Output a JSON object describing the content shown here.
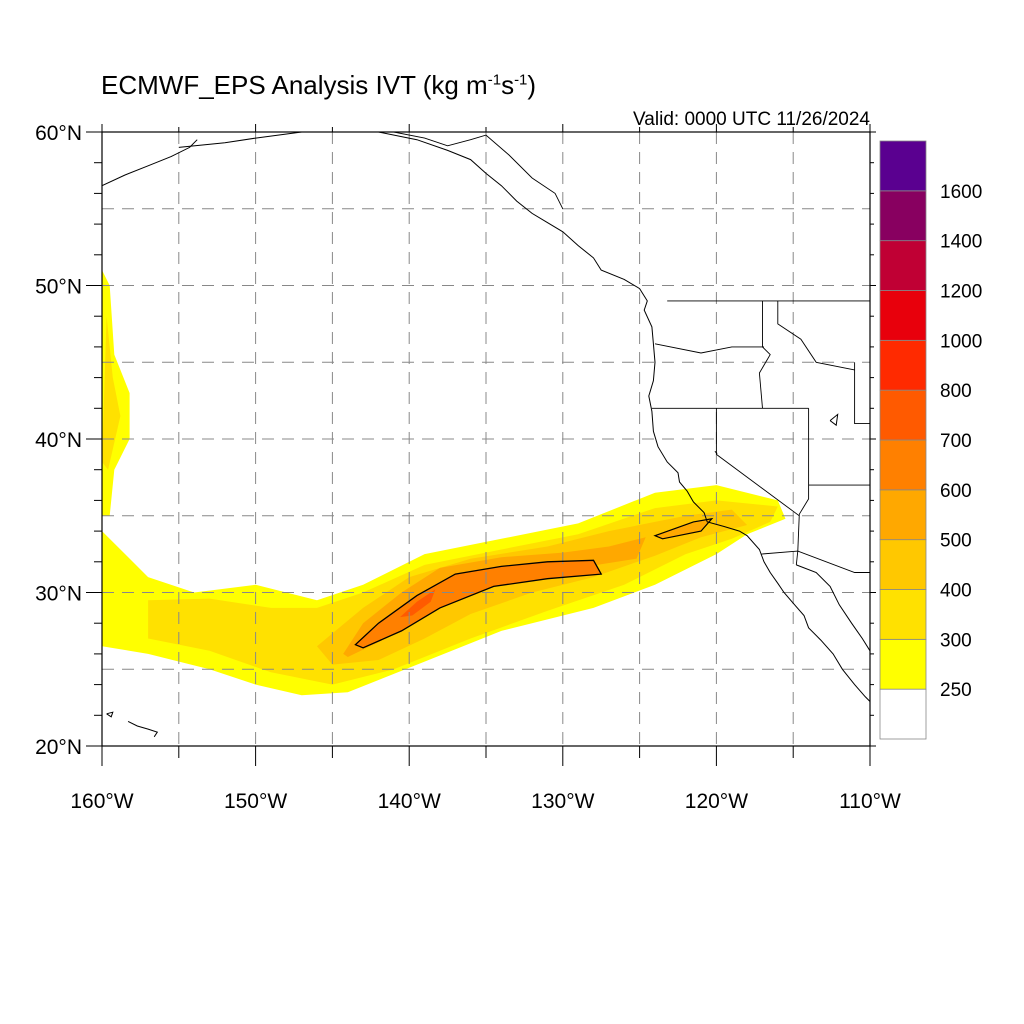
{
  "title": {
    "main": "ECMWF_EPS Analysis IVT (kg m",
    "exp1": "-1",
    "mid": "s",
    "exp2": "-1",
    "end": ")"
  },
  "valid_time": "Valid: 0000 UTC 11/26/2024",
  "map": {
    "lon_range": [
      -160,
      -110
    ],
    "lat_range": [
      20,
      60
    ],
    "lon_labels": [
      {
        "lon": -160,
        "text": "160°W"
      },
      {
        "lon": -150,
        "text": "150°W"
      },
      {
        "lon": -140,
        "text": "140°W"
      },
      {
        "lon": -130,
        "text": "130°W"
      },
      {
        "lon": -120,
        "text": "120°W"
      },
      {
        "lon": -110,
        "text": "110°W"
      }
    ],
    "lat_labels": [
      {
        "lat": 20,
        "text": "20°N"
      },
      {
        "lat": 30,
        "text": "30°N"
      },
      {
        "lat": 40,
        "text": "40°N"
      },
      {
        "lat": 50,
        "text": "50°N"
      },
      {
        "lat": 60,
        "text": "60°N"
      }
    ],
    "gridlines": "dashed every 5 degrees",
    "contour_outline_level": 600
  },
  "colorbar": {
    "levels": [
      "250",
      "300",
      "400",
      "500",
      "600",
      "700",
      "800",
      "1000",
      "1200",
      "1400",
      "1600"
    ],
    "colors": [
      "#ffffff",
      "#ffff00",
      "#ffe100",
      "#ffc800",
      "#ffa800",
      "#ff8000",
      "#ff5a00",
      "#ff2a00",
      "#e8000c",
      "#c00034",
      "#880060",
      "#5a0090"
    ]
  },
  "ivt_field": [
    {
      "name": "north-pacific-core",
      "level": 250,
      "color": "#ffff00",
      "lonlat": [
        [
          -160,
          34
        ],
        [
          -157,
          31
        ],
        [
          -154,
          30
        ],
        [
          -150,
          30.5
        ],
        [
          -146,
          29.5
        ],
        [
          -143,
          30.5
        ],
        [
          -139,
          32.5
        ],
        [
          -134,
          33.5
        ],
        [
          -129,
          34.5
        ],
        [
          -124,
          36.5
        ],
        [
          -120,
          37
        ],
        [
          -116,
          36
        ],
        [
          -115.5,
          34.8
        ],
        [
          -118,
          33.8
        ],
        [
          -120,
          32.5
        ],
        [
          -124,
          30.5
        ],
        [
          -128,
          29
        ],
        [
          -134,
          27.5
        ],
        [
          -139,
          25.5
        ],
        [
          -144,
          23.5
        ],
        [
          -147,
          23.3
        ],
        [
          -150,
          24
        ],
        [
          -153,
          25
        ],
        [
          -157,
          26
        ],
        [
          -160,
          26.5
        ]
      ]
    },
    {
      "name": "west-edge-band",
      "level": 250,
      "color": "#ffff00",
      "lonlat": [
        [
          -160,
          51
        ],
        [
          -159.5,
          50
        ],
        [
          -159.2,
          45.5
        ],
        [
          -158.2,
          43
        ],
        [
          -158.2,
          40
        ],
        [
          -159.2,
          38
        ],
        [
          -159.5,
          35
        ],
        [
          -160,
          35
        ]
      ]
    },
    {
      "name": "mid-band",
      "level": 300,
      "color": "#ffe100",
      "lonlat": [
        [
          -157,
          29.5
        ],
        [
          -153,
          29.6
        ],
        [
          -149,
          29
        ],
        [
          -146,
          29
        ],
        [
          -143,
          30
        ],
        [
          -139,
          31.8
        ],
        [
          -134,
          32.8
        ],
        [
          -129,
          33.8
        ],
        [
          -124,
          35.5
        ],
        [
          -120,
          36
        ],
        [
          -116,
          35.6
        ],
        [
          -116.5,
          34.6
        ],
        [
          -119,
          33.5
        ],
        [
          -122,
          32.5
        ],
        [
          -126,
          30.5
        ],
        [
          -131,
          28.8
        ],
        [
          -136,
          27
        ],
        [
          -141,
          25
        ],
        [
          -145,
          24
        ],
        [
          -149,
          24.8
        ],
        [
          -153,
          26.2
        ],
        [
          -157,
          27
        ]
      ]
    },
    {
      "name": "west-band-inner",
      "level": 300,
      "color": "#ffe100",
      "lonlat": [
        [
          -159.7,
          48
        ],
        [
          -159.3,
          44
        ],
        [
          -158.8,
          41.5
        ],
        [
          -159.6,
          38
        ],
        [
          -160,
          38.5
        ]
      ]
    },
    {
      "name": "inner-band",
      "level": 400,
      "color": "#ffc800",
      "lonlat": [
        [
          -146,
          26.5
        ],
        [
          -143,
          29
        ],
        [
          -140,
          31
        ],
        [
          -136,
          32.2
        ],
        [
          -131,
          33
        ],
        [
          -127,
          34
        ],
        [
          -122,
          35
        ],
        [
          -119,
          35.4
        ],
        [
          -118,
          34.4
        ],
        [
          -121,
          33.6
        ],
        [
          -124,
          32.4
        ],
        [
          -128,
          31
        ],
        [
          -132,
          30
        ],
        [
          -136,
          28.6
        ],
        [
          -139,
          27
        ],
        [
          -142,
          25.6
        ],
        [
          -145,
          25.3
        ]
      ]
    },
    {
      "name": "core-outer",
      "level": 500,
      "color": "#ffa800",
      "lonlat": [
        [
          -144.3,
          26
        ],
        [
          -143,
          28
        ],
        [
          -140.5,
          30
        ],
        [
          -138,
          31.6
        ],
        [
          -134,
          32.3
        ],
        [
          -130,
          32.6
        ],
        [
          -127,
          33
        ],
        [
          -124.6,
          33.6
        ],
        [
          -125.2,
          32.2
        ],
        [
          -129,
          31.6
        ],
        [
          -133,
          31
        ],
        [
          -136.5,
          30
        ],
        [
          -139,
          28.5
        ],
        [
          -141.5,
          27
        ],
        [
          -144,
          25.8
        ]
      ]
    },
    {
      "name": "core-inner",
      "level": 600,
      "color": "#ff8000",
      "lonlat": [
        [
          -143.5,
          26.6
        ],
        [
          -142,
          28
        ],
        [
          -139.5,
          29.8
        ],
        [
          -137,
          31.2
        ],
        [
          -134,
          31.7
        ],
        [
          -131,
          32
        ],
        [
          -128,
          32.1
        ],
        [
          -127.5,
          31.2
        ],
        [
          -131,
          30.9
        ],
        [
          -134.5,
          30.4
        ],
        [
          -138,
          29
        ],
        [
          -140.5,
          27.5
        ],
        [
          -143,
          26.4
        ]
      ]
    },
    {
      "name": "core-peak",
      "level": 700,
      "color": "#ff5a00",
      "lonlat": [
        [
          -140.6,
          28.4
        ],
        [
          -139.5,
          29.4
        ],
        [
          -138.3,
          30.2
        ],
        [
          -138.6,
          29.4
        ],
        [
          -139.8,
          28.5
        ]
      ]
    },
    {
      "name": "near-coast-patch",
      "level": 500,
      "color": "#ffa800",
      "lonlat": [
        [
          -124,
          33.7
        ],
        [
          -121.5,
          34.6
        ],
        [
          -120.3,
          34.8
        ],
        [
          -121,
          34
        ],
        [
          -123.5,
          33.5
        ]
      ]
    }
  ],
  "coastlines": [
    {
      "name": "west-coast-na",
      "lonlat": [
        [
          -155,
          59
        ],
        [
          -152,
          59.3
        ],
        [
          -150,
          59.6
        ],
        [
          -147,
          60
        ],
        [
          -145,
          60
        ],
        [
          -142,
          60
        ],
        [
          -139.5,
          59.5
        ],
        [
          -137.5,
          58.8
        ],
        [
          -136,
          58.2
        ],
        [
          -135,
          57.3
        ],
        [
          -134,
          56.5
        ],
        [
          -133,
          55.5
        ],
        [
          -132,
          54.7
        ],
        [
          -131,
          54.1
        ],
        [
          -130,
          53.5
        ],
        [
          -129,
          52.6
        ],
        [
          -128,
          51.8
        ],
        [
          -127.5,
          51
        ],
        [
          -126,
          50.4
        ],
        [
          -125,
          49.8
        ],
        [
          -124.5,
          49
        ],
        [
          -124.7,
          48.4
        ],
        [
          -124.2,
          47.3
        ],
        [
          -124.1,
          46.2
        ],
        [
          -124,
          45
        ],
        [
          -124.1,
          43.8
        ],
        [
          -124.4,
          42.8
        ],
        [
          -124.2,
          41.8
        ],
        [
          -124.1,
          40.5
        ],
        [
          -123.8,
          39.5
        ],
        [
          -123.2,
          38.5
        ],
        [
          -122.5,
          37.8
        ],
        [
          -122.4,
          37.2
        ],
        [
          -121.9,
          36.6
        ],
        [
          -121.5,
          35.9
        ],
        [
          -120.8,
          35.2
        ],
        [
          -120.6,
          34.6
        ],
        [
          -119.5,
          34.3
        ],
        [
          -118.5,
          34
        ],
        [
          -118,
          33.7
        ],
        [
          -117.2,
          32.8
        ],
        [
          -116.9,
          32
        ],
        [
          -116.5,
          31.3
        ],
        [
          -116,
          30.6
        ],
        [
          -115.6,
          30
        ],
        [
          -115,
          29.3
        ],
        [
          -114.3,
          28.5
        ],
        [
          -114,
          27.7
        ],
        [
          -113.2,
          26.9
        ],
        [
          -112.4,
          26
        ],
        [
          -111.8,
          25
        ],
        [
          -111,
          24
        ],
        [
          -110.3,
          23.2
        ],
        [
          -110,
          22.9
        ]
      ]
    },
    {
      "name": "gulf-of-california-east",
      "lonlat": [
        [
          -114.8,
          31.8
        ],
        [
          -113.5,
          31.3
        ],
        [
          -112.6,
          30.4
        ],
        [
          -112,
          29.2
        ],
        [
          -111.2,
          28
        ],
        [
          -110.5,
          27
        ],
        [
          -110,
          26.2
        ]
      ]
    },
    {
      "name": "hawaii-big-island",
      "lonlat": [
        [
          -156,
          20
        ],
        [
          -155.7,
          19.9
        ]
      ]
    },
    {
      "name": "alaska-kenai",
      "lonlat": [
        [
          -160,
          56.5
        ],
        [
          -158.5,
          57.2
        ],
        [
          -157,
          57.8
        ],
        [
          -155.5,
          58.4
        ],
        [
          -154.3,
          59
        ],
        [
          -153.8,
          59.5
        ]
      ]
    },
    {
      "name": "hawaii-chain",
      "lonlat": [
        [
          -159.7,
          22.1
        ],
        [
          -159.3,
          22.2
        ],
        [
          -159.4,
          21.9
        ],
        [
          -159.7,
          22.1
        ]
      ]
    },
    {
      "name": "maui-oahu",
      "lonlat": [
        [
          -158.3,
          21.6
        ],
        [
          -157.7,
          21.3
        ],
        [
          -157,
          21.1
        ],
        [
          -156.4,
          20.9
        ],
        [
          -156.6,
          20.6
        ]
      ]
    }
  ],
  "borders": [
    {
      "name": "canada-us-west",
      "lonlat": [
        [
          -123.2,
          49
        ],
        [
          -110,
          49
        ]
      ]
    },
    {
      "name": "alaska-canada",
      "lonlat": [
        [
          -141,
          60
        ],
        [
          -139,
          59.6
        ],
        [
          -137.5,
          59.1
        ],
        [
          -136,
          59.5
        ],
        [
          -135,
          59.8
        ],
        [
          -133.5,
          58.5
        ],
        [
          -132,
          57
        ],
        [
          -130.5,
          56
        ],
        [
          -130,
          55
        ]
      ]
    },
    {
      "name": "wa-or",
      "lonlat": [
        [
          -124,
          46.2
        ],
        [
          -121,
          45.6
        ],
        [
          -119,
          46
        ],
        [
          -116.9,
          46
        ]
      ]
    },
    {
      "name": "or-ca-nv",
      "lonlat": [
        [
          -124.2,
          42
        ],
        [
          -114,
          42
        ]
      ]
    },
    {
      "name": "ca-nv",
      "lonlat": [
        [
          -120,
          42
        ],
        [
          -120,
          39
        ],
        [
          -114.6,
          35
        ]
      ]
    },
    {
      "name": "id-west",
      "lonlat": [
        [
          -117,
          49
        ],
        [
          -117,
          46
        ],
        [
          -116.5,
          45.5
        ],
        [
          -117.2,
          44.3
        ],
        [
          -117,
          42
        ]
      ]
    },
    {
      "name": "nv-ut-az",
      "lonlat": [
        [
          -114,
          42
        ],
        [
          -114,
          36.1
        ],
        [
          -114.6,
          35.1
        ],
        [
          -114.7,
          32.7
        ]
      ]
    },
    {
      "name": "mt-id",
      "lonlat": [
        [
          -116,
          49
        ],
        [
          -116,
          47.5
        ],
        [
          -114.5,
          46.5
        ],
        [
          -113.5,
          45
        ],
        [
          -111,
          44.5
        ]
      ]
    },
    {
      "name": "ut-az-line",
      "lonlat": [
        [
          -114,
          37
        ],
        [
          -110,
          37
        ]
      ]
    },
    {
      "name": "wy-ut",
      "lonlat": [
        [
          -111,
          45
        ],
        [
          -111,
          41
        ],
        [
          -110,
          41
        ]
      ]
    },
    {
      "name": "us-mexico",
      "lonlat": [
        [
          -117.1,
          32.5
        ],
        [
          -114.7,
          32.7
        ],
        [
          -111,
          31.3
        ],
        [
          -110,
          31.3
        ]
      ]
    },
    {
      "name": "baja-sonora",
      "lonlat": [
        [
          -114.8,
          31.8
        ],
        [
          -114.7,
          32.7
        ]
      ]
    }
  ],
  "lakes": [
    {
      "name": "great-salt-lake",
      "lonlat": [
        [
          -112.6,
          41.2
        ],
        [
          -112.1,
          41.6
        ],
        [
          -112.2,
          40.9
        ],
        [
          -112.6,
          41.2
        ]
      ]
    },
    {
      "name": "lake-tahoe",
      "lonlat": [
        [
          -120.1,
          39.2
        ],
        [
          -119.95,
          39.05
        ]
      ]
    }
  ]
}
